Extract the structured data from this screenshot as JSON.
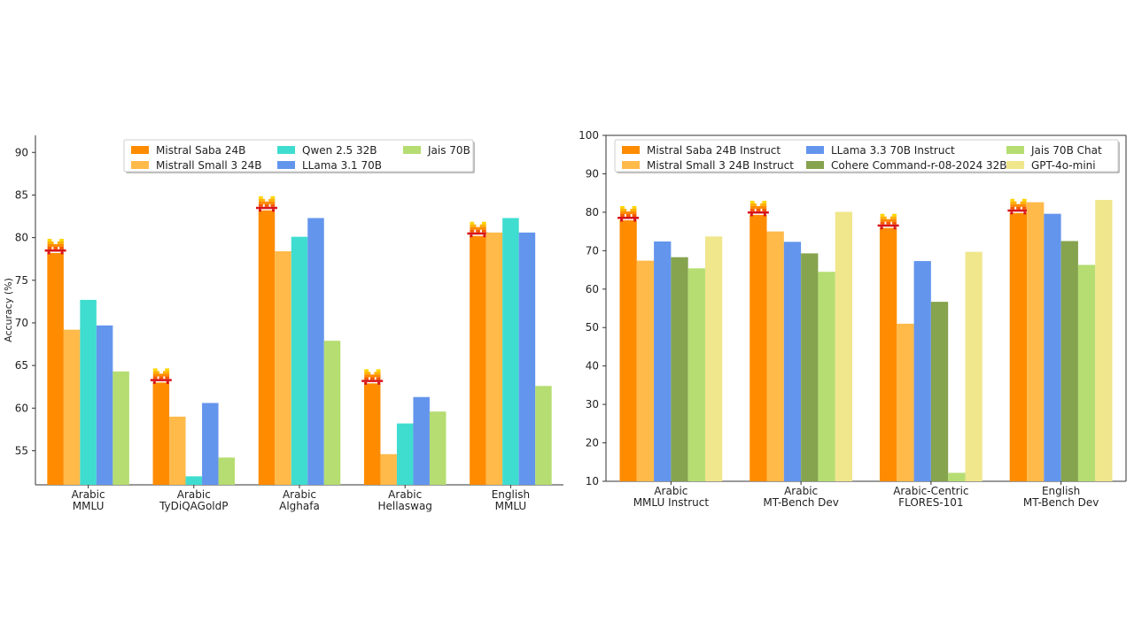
{
  "chart_data": [
    {
      "type": "bar",
      "ylabel": "Accuracy (%)",
      "ylim": [
        51,
        92
      ],
      "yticks": [
        55,
        60,
        65,
        70,
        75,
        80,
        85,
        90
      ],
      "legend_position": "top-center",
      "legend_columns": 3,
      "categories": [
        {
          "line1": "Arabic",
          "line2": "MMLU"
        },
        {
          "line1": "Arabic",
          "line2": "TyDiQAGoldP"
        },
        {
          "line1": "Arabic",
          "line2": "Alghafa"
        },
        {
          "line1": "Arabic",
          "line2": "Hellaswag"
        },
        {
          "line1": "English",
          "line2": "MMLU"
        }
      ],
      "series": [
        {
          "name": "Mistral Saba 24B",
          "color": "#FF8C00",
          "values": [
            78.2,
            63.0,
            83.2,
            62.9,
            80.2
          ]
        },
        {
          "name": "Mistrall Small 3 24B",
          "color": "#FFBA4A",
          "values": [
            69.2,
            59.0,
            78.4,
            54.6,
            80.6
          ]
        },
        {
          "name": "Qwen 2.5 32B",
          "color": "#3FDDD0",
          "values": [
            72.7,
            52.0,
            80.1,
            58.2,
            82.3
          ]
        },
        {
          "name": "LLama 3.1 70B",
          "color": "#6495ED",
          "values": [
            69.7,
            60.6,
            82.3,
            61.3,
            80.6
          ]
        },
        {
          "name": "Jais 70B",
          "color": "#B5DD72",
          "values": [
            64.3,
            54.2,
            67.9,
            59.6,
            62.6
          ]
        }
      ],
      "highlight_series": "Mistral Saba 24B",
      "highlight_icon": "mistral-logo-icon"
    },
    {
      "type": "bar",
      "ylabel": "",
      "ylim": [
        10,
        100
      ],
      "yticks": [
        10,
        20,
        30,
        40,
        50,
        60,
        70,
        80,
        90,
        100
      ],
      "legend_position": "top-center",
      "legend_columns": 3,
      "categories": [
        {
          "line1": "Arabic",
          "line2": "MMLU Instruct"
        },
        {
          "line1": "Arabic",
          "line2": "MT-Bench Dev"
        },
        {
          "line1": "Arabic-Centric",
          "line2": "FLORES-101"
        },
        {
          "line1": "English",
          "line2": "MT-Bench Dev"
        }
      ],
      "series": [
        {
          "name": "Mistral Saba 24B Instruct",
          "color": "#FF8C00",
          "values": [
            77.9,
            79.3,
            75.9,
            79.8
          ]
        },
        {
          "name": "Mistral Small 3 24B Instruct",
          "color": "#FFBA4A",
          "values": [
            67.4,
            75.0,
            51.0,
            82.6
          ]
        },
        {
          "name": "LLama 3.3 70B Instruct",
          "color": "#6495ED",
          "values": [
            72.4,
            72.3,
            67.3,
            79.6
          ]
        },
        {
          "name": "Cohere Command-r-08-2024 32B",
          "color": "#86A34E",
          "values": [
            68.3,
            69.3,
            56.7,
            72.5
          ]
        },
        {
          "name": "Jais 70B Chat",
          "color": "#B5DD72",
          "values": [
            65.4,
            64.5,
            12.2,
            66.3
          ]
        },
        {
          "name": "GPT-4o-mini",
          "color": "#F0E68C",
          "values": [
            73.7,
            80.1,
            69.7,
            83.2
          ]
        }
      ],
      "highlight_series": "Mistral Saba 24B Instruct",
      "highlight_icon": "mistral-logo-icon"
    }
  ]
}
